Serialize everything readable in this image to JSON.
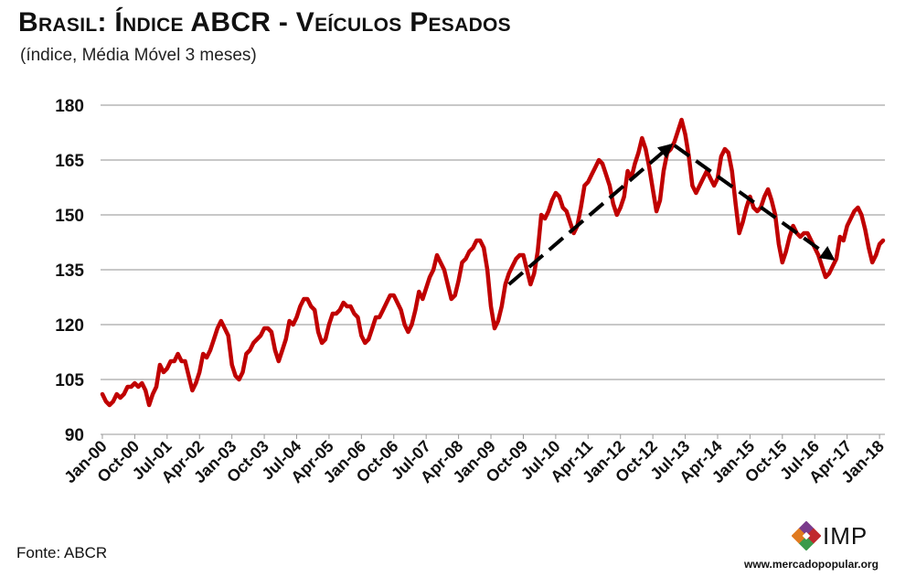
{
  "chart_data": {
    "type": "line",
    "title": "Brasil: Índice ABCR - Veículos Pesados",
    "subtitle": "(índice, Média Móvel 3 meses)",
    "xlabel": "",
    "ylabel": "",
    "ylim": [
      90,
      180
    ],
    "yticks": [
      "90",
      "105",
      "120",
      "135",
      "150",
      "165",
      "180"
    ],
    "grid": true,
    "legend": "none",
    "line_color": "#C00000",
    "trend_color": "#000000",
    "x_tick_labels": [
      "Jan-00",
      "Oct-00",
      "Jul-01",
      "Apr-02",
      "Jan-03",
      "Oct-03",
      "Jul-04",
      "Apr-05",
      "Jan-06",
      "Oct-06",
      "Jul-07",
      "Apr-08",
      "Jan-09",
      "Oct-09",
      "Jul-10",
      "Apr-11",
      "Jan-12",
      "Oct-12",
      "Jul-13",
      "Apr-14",
      "Jan-15",
      "Oct-15",
      "Jul-16",
      "Apr-17",
      "Jan-18"
    ],
    "series": [
      {
        "x_start": "Jan-00",
        "frequency": "monthly",
        "values": [
          101,
          99,
          98,
          99,
          101,
          100,
          101,
          103,
          103,
          104,
          103,
          104,
          102,
          98,
          101,
          103,
          109,
          107,
          108,
          110,
          110,
          112,
          110,
          110,
          106,
          102,
          104,
          107,
          112,
          111,
          113,
          116,
          119,
          121,
          119,
          117,
          109,
          106,
          105,
          107,
          112,
          113,
          115,
          116,
          117,
          119,
          119,
          118,
          113,
          110,
          113,
          116,
          121,
          120,
          122,
          125,
          127,
          127,
          125,
          124,
          118,
          115,
          116,
          120,
          123,
          123,
          124,
          126,
          125,
          125,
          123,
          122,
          117,
          115,
          116,
          119,
          122,
          122,
          124,
          126,
          128,
          128,
          126,
          124,
          120,
          118,
          120,
          124,
          129,
          127,
          130,
          133,
          135,
          139,
          137,
          135,
          131,
          127,
          128,
          132,
          137,
          138,
          140,
          141,
          143,
          143,
          141,
          135,
          125,
          119,
          121,
          125,
          131,
          134,
          136,
          138,
          139,
          139,
          135,
          131,
          134,
          140,
          150,
          149,
          151,
          154,
          156,
          155,
          152,
          151,
          148,
          145,
          147,
          152,
          158,
          159,
          161,
          163,
          165,
          164,
          161,
          158,
          153,
          150,
          152,
          155,
          162,
          160,
          164,
          167,
          171,
          168,
          163,
          157,
          151,
          154,
          162,
          167,
          168,
          170,
          173,
          176,
          172,
          166,
          158,
          156,
          158,
          160,
          162,
          160,
          158,
          160,
          166,
          168,
          167,
          162,
          153,
          145,
          148,
          152,
          155,
          152,
          151,
          152,
          155,
          157,
          154,
          150,
          142,
          137,
          140,
          144,
          147,
          145,
          144,
          145,
          145,
          143,
          141,
          139,
          136,
          133,
          134,
          136,
          138,
          144,
          143,
          147,
          149,
          151,
          152,
          150,
          146,
          141,
          137,
          139,
          142,
          143
        ]
      }
    ],
    "trend_lines": [
      {
        "from": {
          "x": "Jun-09",
          "y": 131
        },
        "to": {
          "x": "Mar-13",
          "y": 169
        }
      },
      {
        "from": {
          "x": "Apr-13",
          "y": 169
        },
        "to": {
          "x": "Dec-16",
          "y": 138
        }
      }
    ]
  },
  "footer": {
    "source": "Fonte: ABCR",
    "logo_text": "IMP",
    "website": "www.mercadopopular.org"
  }
}
